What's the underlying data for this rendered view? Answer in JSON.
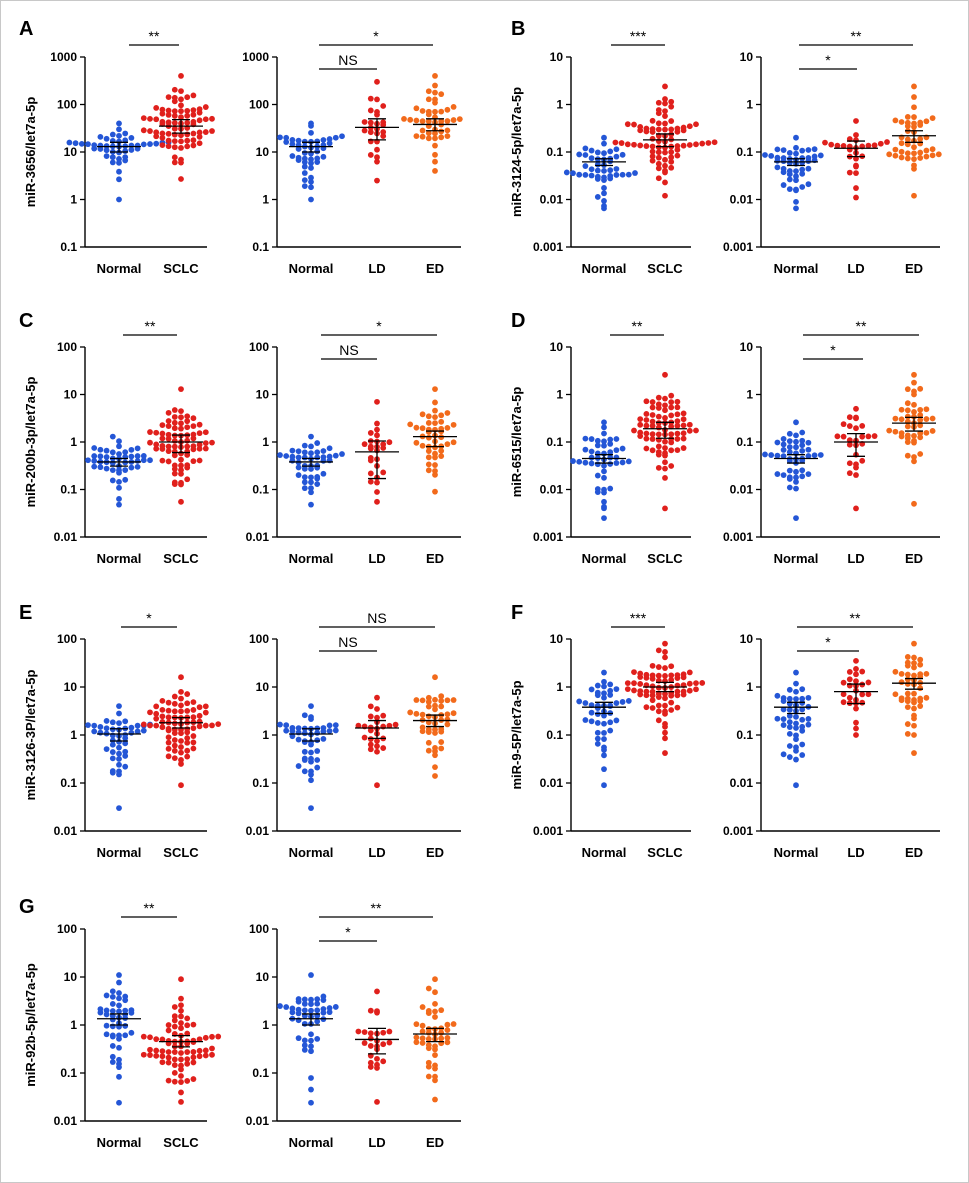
{
  "figure": {
    "colors": {
      "Normal": "#2456d6",
      "SCLC": "#e0201c",
      "LD": "#e0201c",
      "ED": "#f26a1b",
      "axis": "#000000"
    }
  },
  "chart_data": [
    {
      "type": "scatter",
      "panel": "A",
      "log_scale": true,
      "ylim": [
        0.1,
        1000
      ],
      "ylabel": "miR-3656/let7a-5p",
      "yticks": [
        "0.1",
        "1",
        "10",
        "100",
        "1000"
      ],
      "categories": [
        "Normal",
        "SCLC"
      ],
      "groups": [
        {
          "name": "Normal",
          "n": 46,
          "min": 1.0,
          "max": 40,
          "mean": 13,
          "sem_low": 10,
          "sem_high": 16
        },
        {
          "name": "SCLC",
          "n": 76,
          "min": 2.7,
          "max": 400,
          "mean": 35,
          "sem_low": 25,
          "sem_high": 48
        }
      ],
      "brackets": [
        {
          "from": 0,
          "to": 1,
          "label": "**"
        }
      ]
    },
    {
      "type": "scatter",
      "panel": "A",
      "log_scale": true,
      "ylim": [
        0.1,
        1000
      ],
      "ylabel": "",
      "yticks": [
        "0.1",
        "1",
        "10",
        "100",
        "1000"
      ],
      "categories": [
        "Normal",
        "LD",
        "ED"
      ],
      "groups": [
        {
          "name": "Normal",
          "n": 46,
          "min": 1.0,
          "max": 40,
          "mean": 13,
          "sem_low": 10,
          "sem_high": 16
        },
        {
          "name": "LD",
          "n": 26,
          "min": 2.5,
          "max": 300,
          "mean": 33,
          "sem_low": 18,
          "sem_high": 50
        },
        {
          "name": "ED",
          "n": 45,
          "min": 4,
          "max": 400,
          "mean": 38,
          "sem_low": 28,
          "sem_high": 50
        }
      ],
      "brackets": [
        {
          "from": 0,
          "to": 1,
          "label": "NS"
        },
        {
          "from": 0,
          "to": 2,
          "label": "*"
        }
      ]
    },
    {
      "type": "scatter",
      "panel": "B",
      "log_scale": true,
      "ylim": [
        0.001,
        10
      ],
      "ylabel": "miR-3124-5p/let7a-5p",
      "yticks": [
        "0.001",
        "0.01",
        "0.1",
        "1",
        "10"
      ],
      "categories": [
        "Normal",
        "SCLC"
      ],
      "groups": [
        {
          "name": "Normal",
          "n": 46,
          "min": 0.0065,
          "max": 0.2,
          "mean": 0.062,
          "sem_low": 0.052,
          "sem_high": 0.072
        },
        {
          "name": "SCLC",
          "n": 76,
          "min": 0.012,
          "max": 2.4,
          "mean": 0.18,
          "sem_low": 0.13,
          "sem_high": 0.24
        }
      ],
      "brackets": [
        {
          "from": 0,
          "to": 1,
          "label": "***"
        }
      ]
    },
    {
      "type": "scatter",
      "panel": "B",
      "log_scale": true,
      "ylim": [
        0.001,
        10
      ],
      "ylabel": "",
      "yticks": [
        "0.001",
        "0.01",
        "0.1",
        "1",
        "10"
      ],
      "categories": [
        "Normal",
        "LD",
        "ED"
      ],
      "groups": [
        {
          "name": "Normal",
          "n": 46,
          "min": 0.0065,
          "max": 0.2,
          "mean": 0.062,
          "sem_low": 0.052,
          "sem_high": 0.072
        },
        {
          "name": "LD",
          "n": 26,
          "min": 0.011,
          "max": 0.45,
          "mean": 0.12,
          "sem_low": 0.08,
          "sem_high": 0.17
        },
        {
          "name": "ED",
          "n": 45,
          "min": 0.012,
          "max": 2.4,
          "mean": 0.22,
          "sem_low": 0.16,
          "sem_high": 0.28
        }
      ],
      "brackets": [
        {
          "from": 0,
          "to": 1,
          "label": "*"
        },
        {
          "from": 0,
          "to": 2,
          "label": "**"
        }
      ]
    },
    {
      "type": "scatter",
      "panel": "C",
      "log_scale": true,
      "ylim": [
        0.01,
        100
      ],
      "ylabel": "miR-200b-3p/let7a-5p",
      "yticks": [
        "0.01",
        "0.1",
        "1",
        "10",
        "100"
      ],
      "categories": [
        "Normal",
        "SCLC"
      ],
      "groups": [
        {
          "name": "Normal",
          "n": 46,
          "min": 0.048,
          "max": 1.3,
          "mean": 0.38,
          "sem_low": 0.31,
          "sem_high": 0.45
        },
        {
          "name": "SCLC",
          "n": 76,
          "min": 0.055,
          "max": 13,
          "mean": 1.0,
          "sem_low": 0.6,
          "sem_high": 1.4
        }
      ],
      "brackets": [
        {
          "from": 0,
          "to": 1,
          "label": "**"
        }
      ]
    },
    {
      "type": "scatter",
      "panel": "C",
      "log_scale": true,
      "ylim": [
        0.01,
        100
      ],
      "ylabel": "",
      "yticks": [
        "0.01",
        "0.1",
        "1",
        "10",
        "100"
      ],
      "categories": [
        "Normal",
        "LD",
        "ED"
      ],
      "groups": [
        {
          "name": "Normal",
          "n": 46,
          "min": 0.048,
          "max": 1.3,
          "mean": 0.38,
          "sem_low": 0.31,
          "sem_high": 0.45
        },
        {
          "name": "LD",
          "n": 26,
          "min": 0.055,
          "max": 7,
          "mean": 0.62,
          "sem_low": 0.17,
          "sem_high": 1.05
        },
        {
          "name": "ED",
          "n": 45,
          "min": 0.09,
          "max": 13,
          "mean": 1.3,
          "sem_low": 0.8,
          "sem_high": 1.7
        }
      ],
      "brackets": [
        {
          "from": 0,
          "to": 1,
          "label": "NS"
        },
        {
          "from": 0,
          "to": 2,
          "label": "*"
        }
      ]
    },
    {
      "type": "scatter",
      "panel": "D",
      "log_scale": true,
      "ylim": [
        0.001,
        10
      ],
      "ylabel": "miR-6515/let7a-5p",
      "yticks": [
        "0.001",
        "0.01",
        "0.1",
        "1",
        "10"
      ],
      "categories": [
        "Normal",
        "SCLC"
      ],
      "groups": [
        {
          "name": "Normal",
          "n": 46,
          "min": 0.0025,
          "max": 0.26,
          "mean": 0.045,
          "sem_low": 0.036,
          "sem_high": 0.054
        },
        {
          "name": "SCLC",
          "n": 76,
          "min": 0.004,
          "max": 2.6,
          "mean": 0.19,
          "sem_low": 0.12,
          "sem_high": 0.26
        }
      ],
      "brackets": [
        {
          "from": 0,
          "to": 1,
          "label": "**"
        }
      ]
    },
    {
      "type": "scatter",
      "panel": "D",
      "log_scale": true,
      "ylim": [
        0.001,
        10
      ],
      "ylabel": "",
      "yticks": [
        "0.001",
        "0.01",
        "0.1",
        "1",
        "10"
      ],
      "categories": [
        "Normal",
        "LD",
        "ED"
      ],
      "groups": [
        {
          "name": "Normal",
          "n": 46,
          "min": 0.0025,
          "max": 0.26,
          "mean": 0.045,
          "sem_low": 0.036,
          "sem_high": 0.054
        },
        {
          "name": "LD",
          "n": 26,
          "min": 0.004,
          "max": 0.5,
          "mean": 0.1,
          "sem_low": 0.05,
          "sem_high": 0.15
        },
        {
          "name": "ED",
          "n": 45,
          "min": 0.005,
          "max": 2.6,
          "mean": 0.25,
          "sem_low": 0.17,
          "sem_high": 0.33
        }
      ],
      "brackets": [
        {
          "from": 0,
          "to": 1,
          "label": "*"
        },
        {
          "from": 0,
          "to": 2,
          "label": "**"
        }
      ]
    },
    {
      "type": "scatter",
      "panel": "E",
      "log_scale": true,
      "ylim": [
        0.01,
        100
      ],
      "ylabel": "miR-3126-3P/let7a-5p",
      "yticks": [
        "0.01",
        "0.1",
        "1",
        "10",
        "100"
      ],
      "categories": [
        "Normal",
        "SCLC"
      ],
      "groups": [
        {
          "name": "Normal",
          "n": 46,
          "min": 0.03,
          "max": 4,
          "mean": 1.05,
          "sem_low": 0.75,
          "sem_high": 1.35
        },
        {
          "name": "SCLC",
          "n": 76,
          "min": 0.09,
          "max": 16,
          "mean": 1.8,
          "sem_low": 1.4,
          "sem_high": 2.3
        }
      ],
      "brackets": [
        {
          "from": 0,
          "to": 1,
          "label": "*"
        }
      ]
    },
    {
      "type": "scatter",
      "panel": "E",
      "log_scale": true,
      "ylim": [
        0.01,
        100
      ],
      "ylabel": "",
      "yticks": [
        "0.01",
        "0.1",
        "1",
        "10",
        "100"
      ],
      "categories": [
        "Normal",
        "LD",
        "ED"
      ],
      "groups": [
        {
          "name": "Normal",
          "n": 46,
          "min": 0.03,
          "max": 4,
          "mean": 1.05,
          "sem_low": 0.75,
          "sem_high": 1.35
        },
        {
          "name": "LD",
          "n": 26,
          "min": 0.09,
          "max": 6,
          "mean": 1.4,
          "sem_low": 0.85,
          "sem_high": 2.0
        },
        {
          "name": "ED",
          "n": 45,
          "min": 0.14,
          "max": 16,
          "mean": 2.0,
          "sem_low": 1.5,
          "sem_high": 2.6
        }
      ],
      "brackets": [
        {
          "from": 0,
          "to": 1,
          "label": "NS"
        },
        {
          "from": 0,
          "to": 2,
          "label": "NS"
        }
      ]
    },
    {
      "type": "scatter",
      "panel": "F",
      "log_scale": true,
      "ylim": [
        0.001,
        10
      ],
      "ylabel": "miR-9-5P/let7a-5p",
      "yticks": [
        "0.001",
        "0.01",
        "0.1",
        "1",
        "10"
      ],
      "categories": [
        "Normal",
        "SCLC"
      ],
      "groups": [
        {
          "name": "Normal",
          "n": 46,
          "min": 0.009,
          "max": 2,
          "mean": 0.38,
          "sem_low": 0.28,
          "sem_high": 0.48
        },
        {
          "name": "SCLC",
          "n": 76,
          "min": 0.042,
          "max": 8,
          "mean": 1.0,
          "sem_low": 0.8,
          "sem_high": 1.25
        }
      ],
      "brackets": [
        {
          "from": 0,
          "to": 1,
          "label": "***"
        }
      ]
    },
    {
      "type": "scatter",
      "panel": "F",
      "log_scale": true,
      "ylim": [
        0.001,
        10
      ],
      "ylabel": "",
      "yticks": [
        "0.001",
        "0.01",
        "0.1",
        "1",
        "10"
      ],
      "categories": [
        "Normal",
        "LD",
        "ED"
      ],
      "groups": [
        {
          "name": "Normal",
          "n": 46,
          "min": 0.009,
          "max": 2,
          "mean": 0.38,
          "sem_low": 0.28,
          "sem_high": 0.48
        },
        {
          "name": "LD",
          "n": 26,
          "min": 0.1,
          "max": 3.5,
          "mean": 0.8,
          "sem_low": 0.45,
          "sem_high": 1.15
        },
        {
          "name": "ED",
          "n": 45,
          "min": 0.042,
          "max": 8,
          "mean": 1.2,
          "sem_low": 0.9,
          "sem_high": 1.5
        }
      ],
      "brackets": [
        {
          "from": 0,
          "to": 1,
          "label": "*"
        },
        {
          "from": 0,
          "to": 2,
          "label": "**"
        }
      ]
    },
    {
      "type": "scatter",
      "panel": "G",
      "log_scale": true,
      "ylim": [
        0.01,
        100
      ],
      "ylabel": "miR-92b-5p/let7a-5p",
      "yticks": [
        "0.01",
        "0.1",
        "1",
        "10",
        "100"
      ],
      "categories": [
        "Normal",
        "SCLC"
      ],
      "groups": [
        {
          "name": "Normal",
          "n": 46,
          "min": 0.024,
          "max": 11,
          "mean": 1.35,
          "sem_low": 1.0,
          "sem_high": 1.7
        },
        {
          "name": "SCLC",
          "n": 76,
          "min": 0.025,
          "max": 9,
          "mean": 0.45,
          "sem_low": 0.35,
          "sem_high": 0.6
        }
      ],
      "brackets": [
        {
          "from": 0,
          "to": 1,
          "label": "**"
        }
      ]
    },
    {
      "type": "scatter",
      "panel": "G",
      "log_scale": true,
      "ylim": [
        0.01,
        100
      ],
      "ylabel": "",
      "yticks": [
        "0.01",
        "0.1",
        "1",
        "10",
        "100"
      ],
      "categories": [
        "Normal",
        "LD",
        "ED"
      ],
      "groups": [
        {
          "name": "Normal",
          "n": 46,
          "min": 0.024,
          "max": 11,
          "mean": 1.35,
          "sem_low": 1.0,
          "sem_high": 1.7
        },
        {
          "name": "LD",
          "n": 26,
          "min": 0.025,
          "max": 5,
          "mean": 0.5,
          "sem_low": 0.25,
          "sem_high": 0.85
        },
        {
          "name": "ED",
          "n": 45,
          "min": 0.028,
          "max": 9,
          "mean": 0.65,
          "sem_low": 0.45,
          "sem_high": 0.85
        }
      ],
      "brackets": [
        {
          "from": 0,
          "to": 1,
          "label": "*"
        },
        {
          "from": 0,
          "to": 2,
          "label": "**"
        }
      ]
    }
  ]
}
